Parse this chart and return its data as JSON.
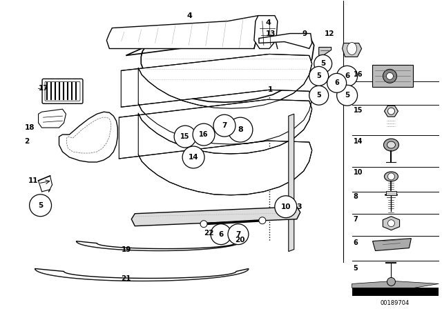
{
  "bg_color": "#ffffff",
  "diagram_id": "00189704",
  "fig_width": 6.4,
  "fig_height": 4.48,
  "dpi": 100,
  "lc": "#000000",
  "gray1": "#aaaaaa",
  "gray2": "#cccccc",
  "gray3": "#e8e8e8"
}
